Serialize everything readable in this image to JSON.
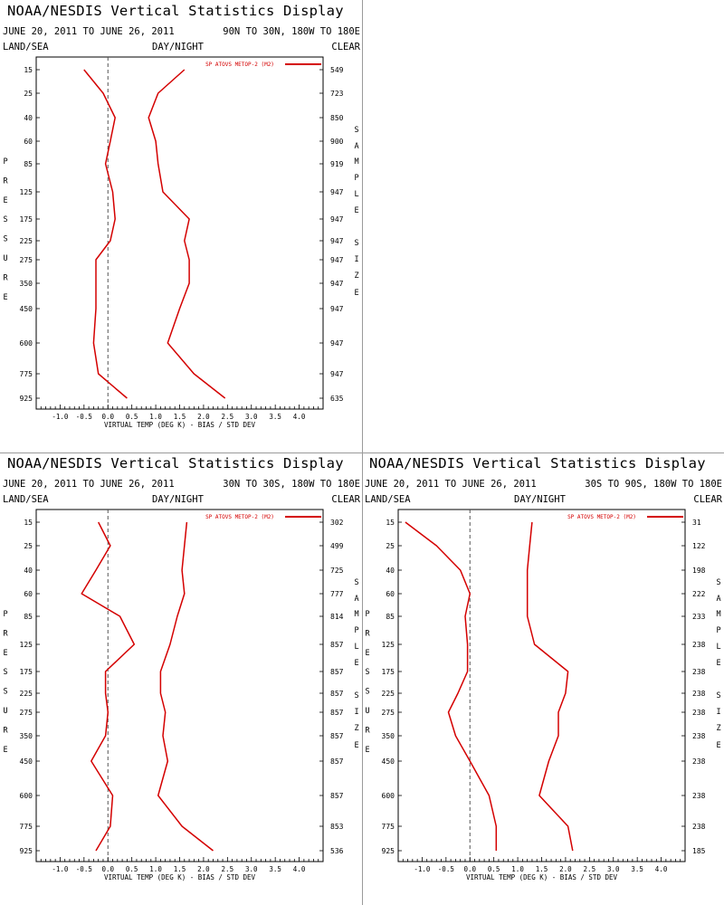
{
  "panels": [
    {
      "title": "NOAA/NESDIS Vertical Statistics Display",
      "date_range": "JUNE 20, 2011 TO JUNE 26, 2011",
      "region": "90N TO 30N, 180W TO 180E",
      "land_sea": "LAND/SEA",
      "day_night": "DAY/NIGHT",
      "clear": "CLEAR"
    },
    {
      "title": "NOAA/NESDIS Vertical Statistics Display",
      "date_range": "JUNE 20, 2011 TO JUNE 26, 2011",
      "region": "30N TO 30S, 180W TO 180E",
      "land_sea": "LAND/SEA",
      "day_night": "DAY/NIGHT",
      "clear": "CLEAR"
    },
    {
      "title": "NOAA/NESDIS Vertical Statistics Display",
      "date_range": "JUNE 20, 2011 TO JUNE 26, 2011",
      "region": "30S TO 90S, 180W TO 180E",
      "land_sea": "LAND/SEA",
      "day_night": "DAY/NIGHT",
      "clear": "CLEAR"
    }
  ],
  "chart_data": [
    {
      "type": "line",
      "title": "NOAA/NESDIS Vertical Statistics Display",
      "region": "90N TO 30N, 180W TO 180E",
      "xlabel": "VIRTUAL TEMP (DEG K) - BIAS / STD DEV",
      "ylabel": "PRESSURE",
      "right_label": "SAMPLE SIZE",
      "xlim": [
        -1.5,
        4.5
      ],
      "x_ticks": [
        "-1.0",
        "-0.5",
        "0.0",
        "0.5",
        "1.0",
        "1.5",
        "2.0",
        "2.5",
        "3.0",
        "3.5",
        "4.0"
      ],
      "pressure_levels": [
        "15",
        "25",
        "40",
        "60",
        "85",
        "125",
        "175",
        "225",
        "275",
        "350",
        "450",
        "600",
        "775",
        "925"
      ],
      "sample_size": [
        "549",
        "723",
        "850",
        "900",
        "919",
        "947",
        "947",
        "947",
        "947",
        "947",
        "947",
        "947",
        "947",
        "635"
      ],
      "legend": "SP ATOVS METOP-2 (M2)",
      "color": "#d40000",
      "series": [
        {
          "name": "BIAS",
          "values": [
            -0.5,
            -0.1,
            0.15,
            0.05,
            -0.05,
            0.1,
            0.15,
            0.05,
            -0.25,
            -0.25,
            -0.25,
            -0.3,
            -0.2,
            0.4
          ]
        },
        {
          "name": "STD DEV",
          "values": [
            1.6,
            1.05,
            0.85,
            1.0,
            1.05,
            1.15,
            1.7,
            1.6,
            1.7,
            1.7,
            1.5,
            1.25,
            1.8,
            2.45
          ]
        }
      ]
    },
    {
      "type": "line",
      "title": "NOAA/NESDIS Vertical Statistics Display",
      "region": "30N TO 30S, 180W TO 180E",
      "xlabel": "VIRTUAL TEMP (DEG K) - BIAS / STD DEV",
      "ylabel": "PRESSURE",
      "right_label": "SAMPLE SIZE",
      "xlim": [
        -1.5,
        4.5
      ],
      "x_ticks": [
        "-1.0",
        "-0.5",
        "0.0",
        "0.5",
        "1.0",
        "1.5",
        "2.0",
        "2.5",
        "3.0",
        "3.5",
        "4.0"
      ],
      "pressure_levels": [
        "15",
        "25",
        "40",
        "60",
        "85",
        "125",
        "175",
        "225",
        "275",
        "350",
        "450",
        "600",
        "775",
        "925"
      ],
      "sample_size": [
        "302",
        "499",
        "725",
        "777",
        "814",
        "857",
        "857",
        "857",
        "857",
        "857",
        "857",
        "857",
        "853",
        "536"
      ],
      "legend": "SP ATOVS METOP-2 (M2)",
      "color": "#d40000",
      "series": [
        {
          "name": "BIAS",
          "values": [
            -0.2,
            0.05,
            -0.25,
            -0.55,
            0.25,
            0.55,
            -0.05,
            -0.05,
            0.0,
            -0.05,
            -0.35,
            0.1,
            0.05,
            -0.25
          ]
        },
        {
          "name": "STD DEV",
          "values": [
            1.65,
            1.6,
            1.55,
            1.6,
            1.45,
            1.3,
            1.1,
            1.1,
            1.2,
            1.15,
            1.25,
            1.05,
            1.55,
            2.2
          ]
        }
      ]
    },
    {
      "type": "line",
      "title": "NOAA/NESDIS Vertical Statistics Display",
      "region": "30S TO 90S, 180W TO 180E",
      "xlabel": "VIRTUAL TEMP (DEG K) - BIAS / STD DEV",
      "ylabel": "PRESSURE",
      "right_label": "SAMPLE SIZE",
      "xlim": [
        -1.5,
        4.5
      ],
      "x_ticks": [
        "-1.0",
        "-0.5",
        "0.0",
        "0.5",
        "1.0",
        "1.5",
        "2.0",
        "2.5",
        "3.0",
        "3.5",
        "4.0"
      ],
      "pressure_levels": [
        "15",
        "25",
        "40",
        "60",
        "85",
        "125",
        "175",
        "225",
        "275",
        "350",
        "450",
        "600",
        "775",
        "925"
      ],
      "sample_size": [
        "31",
        "122",
        "198",
        "222",
        "233",
        "238",
        "238",
        "238",
        "238",
        "238",
        "238",
        "238",
        "238",
        "185"
      ],
      "legend": "SP ATOVS METOP-2 (M2)",
      "color": "#d40000",
      "series": [
        {
          "name": "BIAS",
          "values": [
            -1.35,
            -0.7,
            -0.2,
            0.0,
            -0.1,
            -0.05,
            -0.05,
            -0.25,
            -0.45,
            -0.3,
            0.0,
            0.4,
            0.55,
            0.55
          ]
        },
        {
          "name": "STD DEV",
          "values": [
            1.3,
            1.25,
            1.2,
            1.2,
            1.2,
            1.35,
            2.05,
            2.0,
            1.85,
            1.85,
            1.65,
            1.45,
            2.05,
            2.15
          ]
        }
      ]
    }
  ]
}
